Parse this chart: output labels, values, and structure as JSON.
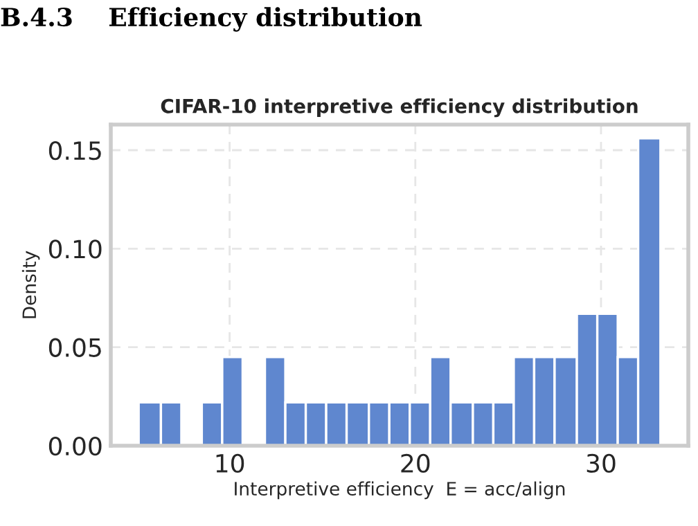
{
  "chart_data": {
    "type": "histogram",
    "title": "CIFAR-10 interpretive efficiency distribution",
    "xlabel": "Interpretive efficiency  E = acc/align",
    "ylabel": "Density",
    "annotations": [
      "B.4.3    Efficiency distribution"
    ],
    "bins": [
      5.1,
      6.3,
      7.4,
      8.5,
      9.6,
      10.7,
      11.9,
      13.0,
      14.1,
      15.2,
      16.3,
      17.5,
      18.6,
      19.7,
      20.8,
      21.9,
      23.1,
      24.2,
      25.3,
      26.4,
      27.5,
      28.7,
      29.8,
      30.9,
      32.0,
      33.2
    ],
    "values": [
      0.022,
      0.022,
      0,
      0.022,
      0.045,
      0,
      0.045,
      0.022,
      0.022,
      0.022,
      0.022,
      0.022,
      0.022,
      0.022,
      0.045,
      0.022,
      0.022,
      0.022,
      0.045,
      0.045,
      0.045,
      0.067,
      0.067,
      0.045,
      0.156
    ],
    "color": "#5f87cf",
    "xlim": [
      3.6,
      34.7
    ],
    "xticks": [
      10,
      20,
      30
    ],
    "ylim": [
      0,
      0.163
    ],
    "yticks": [
      {
        "value": 0,
        "label": "0.00"
      },
      0.05,
      {
        "value": 0.1,
        "label": "0.10"
      },
      0.15
    ],
    "grid": true
  }
}
